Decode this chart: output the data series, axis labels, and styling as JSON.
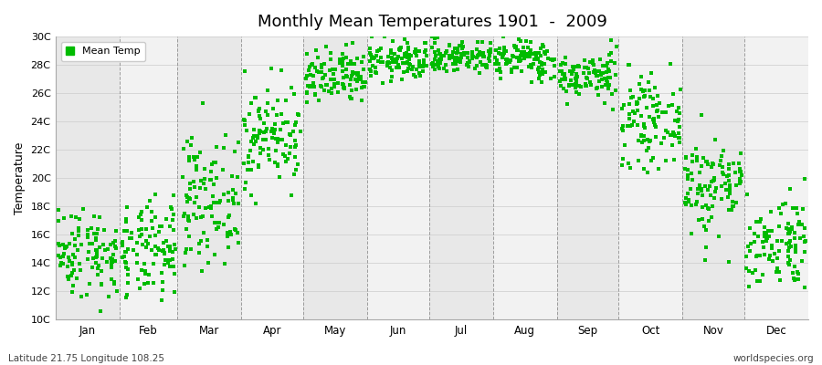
{
  "title": "Monthly Mean Temperatures 1901  -  2009",
  "ylabel": "Temperature",
  "bottom_left_text": "Latitude 21.75 Longitude 108.25",
  "bottom_right_text": "worldspecies.org",
  "legend_label": "Mean Temp",
  "ylim": [
    10,
    30
  ],
  "yticks": [
    10,
    12,
    14,
    16,
    18,
    20,
    22,
    24,
    26,
    28,
    30
  ],
  "ytick_labels": [
    "10C",
    "12C",
    "14C",
    "16C",
    "18C",
    "20C",
    "22C",
    "24C",
    "26C",
    "28C",
    "30C"
  ],
  "months": [
    "Jan",
    "Feb",
    "Mar",
    "Apr",
    "May",
    "Jun",
    "Jul",
    "Aug",
    "Sep",
    "Oct",
    "Nov",
    "Dec"
  ],
  "month_days": [
    31,
    28,
    31,
    30,
    31,
    30,
    31,
    31,
    30,
    31,
    30,
    31
  ],
  "month_means": [
    14.8,
    14.8,
    18.5,
    23.0,
    27.0,
    28.3,
    28.6,
    28.4,
    27.2,
    24.0,
    19.5,
    15.5
  ],
  "month_stds": [
    1.6,
    1.7,
    2.2,
    1.8,
    1.0,
    0.7,
    0.6,
    0.7,
    0.8,
    1.5,
    1.8,
    1.7
  ],
  "n_years": 109,
  "dot_color": "#00BB00",
  "dot_size": 6,
  "background_color": "#FFFFFF",
  "plot_bg_color": "#FFFFFF",
  "band_color_odd": "#E8E8E8",
  "band_color_even": "#F2F2F2",
  "vline_color": "#888888",
  "seed": 42
}
